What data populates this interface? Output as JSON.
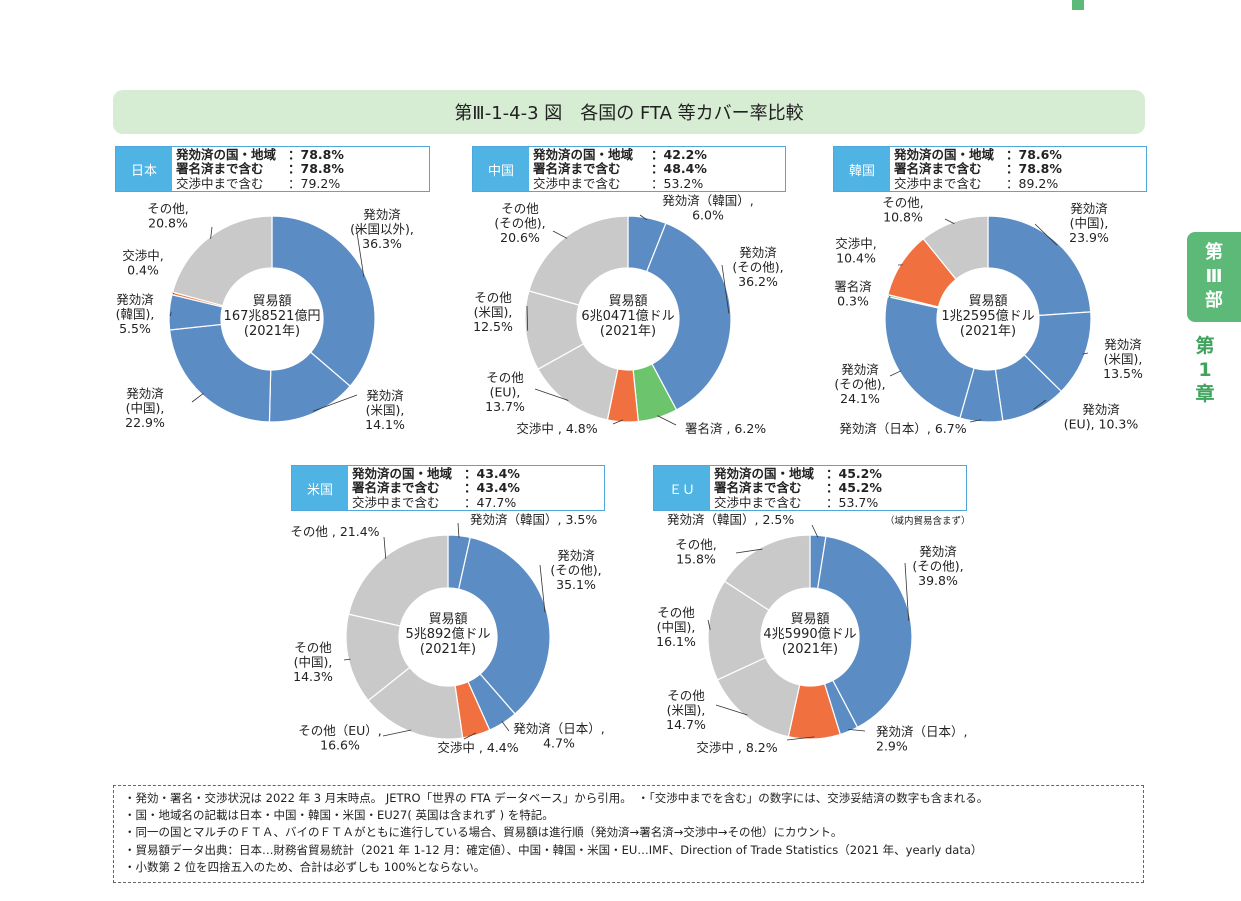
{
  "header": {
    "title": "第Ⅲ-1-4-3 図　各国の FTA 等カバー率比較"
  },
  "side": {
    "part_line1": "第",
    "part_line2": "Ⅲ",
    "part_line3": "部",
    "chapter_line1": "第",
    "chapter_line2": "1",
    "chapter_line3": "章"
  },
  "boxes": [
    {
      "country": "日本",
      "rows": [
        {
          "k": "発効済の国・地域",
          "v": "：78.8%"
        },
        {
          "k": "署名済まで含む",
          "v": "：78.8%"
        },
        {
          "k": "交渉中まで含む",
          "v": "：79.2%"
        }
      ]
    },
    {
      "country": "中国",
      "rows": [
        {
          "k": "発効済の国・地域",
          "v": "：42.2%"
        },
        {
          "k": "署名済まで含む",
          "v": "：48.4%"
        },
        {
          "k": "交渉中まで含む",
          "v": "：53.2%"
        }
      ]
    },
    {
      "country": "韓国",
      "rows": [
        {
          "k": "発効済の国・地域",
          "v": "：78.6%"
        },
        {
          "k": "署名済まで含む",
          "v": "：78.8%"
        },
        {
          "k": "交渉中まで含む",
          "v": "：89.2%"
        }
      ]
    },
    {
      "country": "米国",
      "rows": [
        {
          "k": "発効済の国・地域",
          "v": "：43.4%"
        },
        {
          "k": "署名済まで含む",
          "v": "：43.4%"
        },
        {
          "k": "交渉中まで含む",
          "v": "：47.7%"
        }
      ]
    },
    {
      "country": "ＥＵ",
      "rows": [
        {
          "k": "発効済の国・地域",
          "v": "：45.2%"
        },
        {
          "k": "署名済まで含む",
          "v": "：45.2%"
        },
        {
          "k": "交渉中まで含む",
          "v": "：53.7%"
        }
      ]
    }
  ],
  "scope_note": "（域内貿易含まず）",
  "notes": [
    "・発効・署名・交渉状況は 2022 年 3 月末時点。 JETRO「世界の FTA データベース」から引用。　・「交渉中までを含む」の数字には、交渉妥結済の数字も含まれる。",
    "・国・地域名の記載は日本・中国・韓国・米国・EU27( 英国は含まれず ) を特記。",
    "・同一の国とマルチのＦＴＡ、バイのＦＴＡがともに進行している場合、貿易額は進行順（発効済→署名済→交渉中→その他）にカウント。",
    "・貿易額データ出典：日本…財務省貿易統計（2021 年 1-12 月：確定値）、中国・韓国・米国・EU…IMF、Direction of Trade Statistics（2021 年、yearly data）",
    "・小数第 2 位を四捨五入のため、合計は必ずしも 100%とならない。"
  ],
  "colors": {
    "effective": "#5b8cc4",
    "signed": "#6cc56c",
    "negotiating": "#f07040",
    "other": "#c9c9c9"
  },
  "chart_data": [
    {
      "type": "pie",
      "country": "日本",
      "center_text": [
        "貿易額",
        "167兆8521億円",
        "(2021年)"
      ],
      "slices": [
        {
          "category": "effective",
          "label": [
            "発効済",
            "(米国以外),",
            "36.3%"
          ],
          "value": 36.3
        },
        {
          "category": "effective",
          "label": [
            "発効済",
            "(米国),",
            "14.1%"
          ],
          "value": 14.1
        },
        {
          "category": "effective",
          "label": [
            "発効済",
            "(中国),",
            "22.9%"
          ],
          "value": 22.9
        },
        {
          "category": "effective",
          "label": [
            "発効済",
            "(韓国),",
            "5.5%"
          ],
          "value": 5.5
        },
        {
          "category": "negotiating",
          "label": [
            "交渉中,",
            "0.4%"
          ],
          "value": 0.4
        },
        {
          "category": "other",
          "label": [
            "その他,",
            "20.8%"
          ],
          "value": 20.8
        }
      ]
    },
    {
      "type": "pie",
      "country": "中国",
      "center_text": [
        "貿易額",
        "6兆0471億ドル",
        "(2021年)"
      ],
      "slices": [
        {
          "category": "effective",
          "label": [
            "発効済（韓国）,",
            "6.0%"
          ],
          "value": 6.0
        },
        {
          "category": "effective",
          "label": [
            "発効済",
            "(その他),",
            "36.2%"
          ],
          "value": 36.2
        },
        {
          "category": "signed",
          "label": [
            "署名済 , 6.2%"
          ],
          "value": 6.2
        },
        {
          "category": "negotiating",
          "label": [
            "交渉中 , 4.8%"
          ],
          "value": 4.8
        },
        {
          "category": "other",
          "label": [
            "その他",
            "(EU),",
            "13.7%"
          ],
          "value": 13.7
        },
        {
          "category": "other",
          "label": [
            "その他",
            "(米国),",
            "12.5%"
          ],
          "value": 12.5
        },
        {
          "category": "other",
          "label": [
            "その他",
            "(その他),",
            "20.6%"
          ],
          "value": 20.6
        }
      ]
    },
    {
      "type": "pie",
      "country": "韓国",
      "center_text": [
        "貿易額",
        "1兆2595億ドル",
        "(2021年)"
      ],
      "slices": [
        {
          "category": "effective",
          "label": [
            "発効済",
            "(中国),",
            "23.9%"
          ],
          "value": 23.9
        },
        {
          "category": "effective",
          "label": [
            "発効済",
            "(米国),",
            "13.5%"
          ],
          "value": 13.5
        },
        {
          "category": "effective",
          "label": [
            "発効済",
            "(EU), 10.3%"
          ],
          "value": 10.3
        },
        {
          "category": "effective",
          "label": [
            "発効済（日本）, 6.7%"
          ],
          "value": 6.7
        },
        {
          "category": "effective",
          "label": [
            "発効済",
            "(その他),",
            "24.1%"
          ],
          "value": 24.1
        },
        {
          "category": "signed",
          "label": [
            "署名済",
            "0.3%"
          ],
          "value": 0.3
        },
        {
          "category": "negotiating",
          "label": [
            "交渉中,",
            "10.4%"
          ],
          "value": 10.4
        },
        {
          "category": "other",
          "label": [
            "その他,",
            "10.8%"
          ],
          "value": 10.8
        }
      ]
    },
    {
      "type": "pie",
      "country": "米国",
      "center_text": [
        "貿易額",
        "5兆892億ドル",
        "(2021年)"
      ],
      "slices": [
        {
          "category": "effective",
          "label": [
            "発効済（韓国）, 3.5%"
          ],
          "value": 3.5
        },
        {
          "category": "effective",
          "label": [
            "発効済",
            "(その他),",
            "35.1%"
          ],
          "value": 35.1
        },
        {
          "category": "effective",
          "label": [
            "発効済（日本）,",
            "4.7%"
          ],
          "value": 4.7
        },
        {
          "category": "negotiating",
          "label": [
            "交渉中 , 4.4%"
          ],
          "value": 4.4
        },
        {
          "category": "other",
          "label": [
            "その他（EU）,",
            "16.6%"
          ],
          "value": 16.6
        },
        {
          "category": "other",
          "label": [
            "その他",
            "(中国),",
            "14.3%"
          ],
          "value": 14.3
        },
        {
          "category": "other",
          "label": [
            "その他 , 21.4%"
          ],
          "value": 21.4
        }
      ]
    },
    {
      "type": "pie",
      "country": "ＥＵ",
      "center_text": [
        "貿易額",
        "4兆5990億ドル",
        "(2021年)"
      ],
      "slices": [
        {
          "category": "effective",
          "label": [
            "発効済（韓国）, 2.5%"
          ],
          "value": 2.5
        },
        {
          "category": "effective",
          "label": [
            "発効済",
            "(その他),",
            "39.8%"
          ],
          "value": 39.8
        },
        {
          "category": "effective",
          "label": [
            "発効済（日本）,",
            "2.9%"
          ],
          "value": 2.9
        },
        {
          "category": "negotiating",
          "label": [
            "交渉中 , 8.2%"
          ],
          "value": 8.2
        },
        {
          "category": "other",
          "label": [
            "その他",
            "(米国),",
            "14.7%"
          ],
          "value": 14.7
        },
        {
          "category": "other",
          "label": [
            "その他",
            "(中国),",
            "16.1%"
          ],
          "value": 16.1
        },
        {
          "category": "other",
          "label": [
            "その他,",
            "15.8%"
          ],
          "value": 15.8
        }
      ]
    }
  ]
}
